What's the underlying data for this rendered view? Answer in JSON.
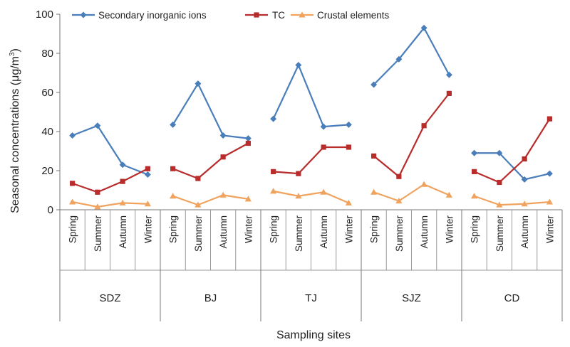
{
  "chart_data": {
    "type": "line",
    "xlabel": "Sampling sites",
    "ylabel": "Seasonal concentrations (μg/m",
    "ylabel_superscript": "3",
    "ylabel_suffix": ")",
    "ylim": [
      0,
      100
    ],
    "yticks": [
      0,
      20,
      40,
      60,
      80,
      100
    ],
    "grid": false,
    "legend_position": "top",
    "groups": [
      {
        "name": "SDZ",
        "categories": [
          "Spring",
          "Summer",
          "Autumn",
          "Winter"
        ]
      },
      {
        "name": "BJ",
        "categories": [
          "Spring",
          "Summer",
          "Autumn",
          "Winter"
        ]
      },
      {
        "name": "TJ",
        "categories": [
          "Spring",
          "Summer",
          "Autumn",
          "Winter"
        ]
      },
      {
        "name": "SJZ",
        "categories": [
          "Spring",
          "Summer",
          "Autumn",
          "Winter"
        ]
      },
      {
        "name": "CD",
        "categories": [
          "Spring",
          "Summer",
          "Autumn",
          "Winter"
        ]
      }
    ],
    "series": [
      {
        "name": "Secondary inorganic ions",
        "color": "#4a7ebb",
        "marker": "diamond",
        "values": [
          [
            38,
            43,
            23,
            18
          ],
          [
            43.5,
            64.5,
            38,
            36.5
          ],
          [
            46.5,
            74,
            42.5,
            43.5
          ],
          [
            64,
            77,
            93,
            69
          ],
          [
            29,
            29,
            15.5,
            18.5
          ]
        ]
      },
      {
        "name": "TC",
        "color": "#b82c2c",
        "marker": "square",
        "values": [
          [
            13.5,
            9,
            14.5,
            21
          ],
          [
            21,
            16,
            27,
            34
          ],
          [
            19.5,
            18.5,
            32,
            32
          ],
          [
            27.5,
            17,
            43,
            59.5
          ],
          [
            19.5,
            14,
            26,
            46.5
          ]
        ]
      },
      {
        "name": "Crustal elements",
        "color": "#f0a35e",
        "marker": "triangle",
        "values": [
          [
            4,
            1.5,
            3.5,
            3
          ],
          [
            7,
            2.5,
            7.5,
            5.5
          ],
          [
            9.5,
            7,
            9,
            3.5
          ],
          [
            9,
            4.5,
            13,
            7.5
          ],
          [
            7,
            2.5,
            3,
            4
          ]
        ]
      }
    ]
  }
}
